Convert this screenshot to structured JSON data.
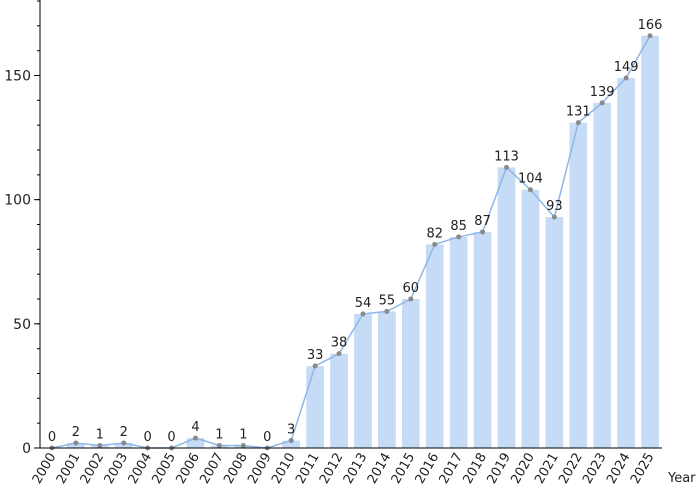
{
  "chart_data": {
    "type": "bar",
    "x_label": "Year",
    "categories": [
      "2000",
      "2001",
      "2002",
      "2003",
      "2004",
      "2005",
      "2006",
      "2007",
      "2008",
      "2009",
      "2010",
      "2011",
      "2012",
      "2013",
      "2014",
      "2015",
      "2016",
      "2017",
      "2018",
      "2019",
      "2020",
      "2021",
      "2022",
      "2023",
      "2024",
      "2025"
    ],
    "values": [
      0,
      2,
      1,
      2,
      0,
      0,
      4,
      1,
      1,
      0,
      3,
      33,
      38,
      54,
      55,
      60,
      82,
      85,
      87,
      113,
      104,
      93,
      131,
      139,
      149,
      166
    ],
    "color": "#c6dbf6",
    "line_color": "#8db7e8",
    "point_color": "#8a8a8a",
    "ylim": [
      0,
      180
    ],
    "yticks": [
      0,
      50,
      100,
      150
    ]
  }
}
